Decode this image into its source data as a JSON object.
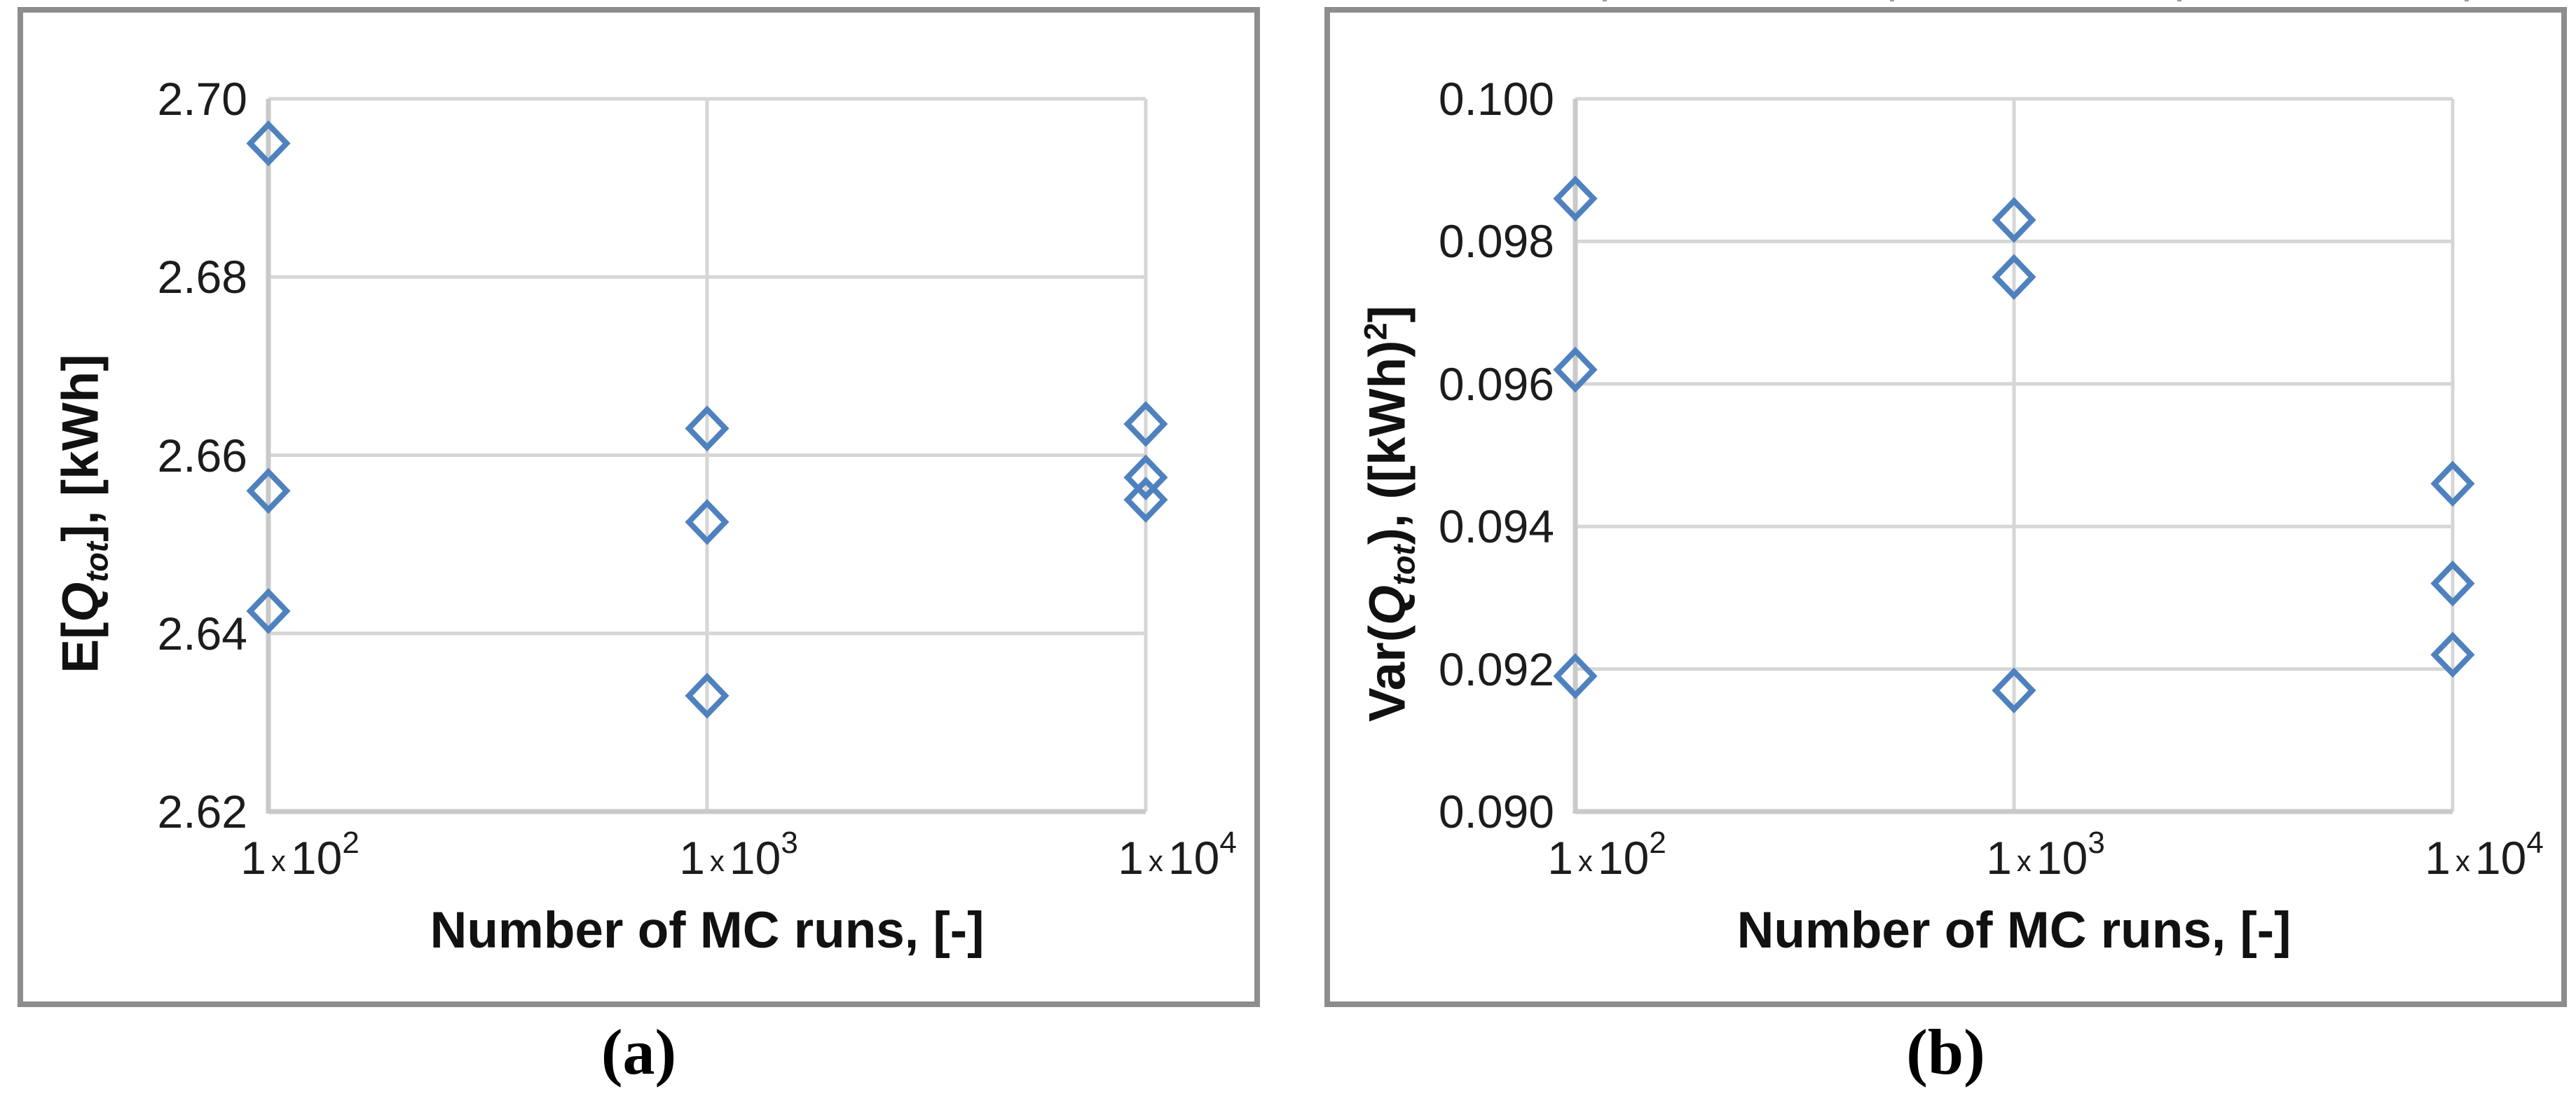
{
  "figure": {
    "background": "#ffffff",
    "border_color": "#8d8d8d",
    "gridline_color": "#d6d6d6",
    "axisline_color": "#c9c9c9",
    "marker_color": "#4e81bd",
    "panels": [
      {
        "caption": "(a)",
        "x_title": "Number of MC runs, [-]",
        "y_title": {
          "prefix": "E[",
          "var": "Q",
          "var_sub": "tot",
          "mid": "], [kWh]",
          "sup": "",
          "end": ""
        },
        "ytick_labels": [
          "2.70",
          "2.68",
          "2.66",
          "2.64",
          "2.62"
        ],
        "xtick_labels": [
          {
            "mant": "1",
            "times": "x",
            "base": "10",
            "exp": "2"
          },
          {
            "mant": "1",
            "times": "x",
            "base": "10",
            "exp": "3"
          },
          {
            "mant": "1",
            "times": "x",
            "base": "10",
            "exp": "4"
          }
        ],
        "top_ticks": []
      },
      {
        "caption": "(b)",
        "x_title": "Number of MC runs, [-]",
        "y_title": {
          "prefix": "Var(",
          "var": "Q",
          "var_sub": "tot",
          "mid": "), ([kWh)",
          "sup": "2",
          "end": "]"
        },
        "ytick_labels": [
          "0.100",
          "0.098",
          "0.096",
          "0.094",
          "0.092",
          "0.090"
        ],
        "xtick_labels": [
          {
            "mant": "1",
            "times": "x",
            "base": "10",
            "exp": "2"
          },
          {
            "mant": "1",
            "times": "x",
            "base": "10",
            "exp": "3"
          },
          {
            "mant": "1",
            "times": "x",
            "base": "10",
            "exp": "4"
          }
        ],
        "top_ticks": [
          392,
          802,
          1212,
          1622
        ]
      }
    ]
  },
  "chart_data": [
    {
      "type": "scatter",
      "title": "",
      "xlabel": "Number of MC runs, [-]",
      "ylabel": "E[Q_tot], [kWh]",
      "xscale": "log",
      "xlim": [
        100,
        10000
      ],
      "ylim": [
        2.62,
        2.7
      ],
      "xticks": [
        100,
        1000,
        10000
      ],
      "yticks": [
        2.62,
        2.64,
        2.66,
        2.68,
        2.7
      ],
      "grid": true,
      "legend_position": "none",
      "marker": "open-diamond",
      "points": [
        [
          100,
          2.695
        ],
        [
          100,
          2.656
        ],
        [
          100,
          2.6425
        ],
        [
          1000,
          2.663
        ],
        [
          1000,
          2.6525
        ],
        [
          1000,
          2.633
        ],
        [
          10000,
          2.6635
        ],
        [
          10000,
          2.6575
        ],
        [
          10000,
          2.655
        ]
      ]
    },
    {
      "type": "scatter",
      "title": "",
      "xlabel": "Number of MC runs, [-]",
      "ylabel": "Var(Q_tot), ([kWh)^2]",
      "xscale": "log",
      "xlim": [
        100,
        10000
      ],
      "ylim": [
        0.09,
        0.1
      ],
      "xticks": [
        100,
        1000,
        10000
      ],
      "yticks": [
        0.09,
        0.092,
        0.094,
        0.096,
        0.098,
        0.1
      ],
      "grid": true,
      "legend_position": "none",
      "marker": "open-diamond",
      "points": [
        [
          100,
          0.0986
        ],
        [
          100,
          0.0962
        ],
        [
          100,
          0.0919
        ],
        [
          1000,
          0.0983
        ],
        [
          1000,
          0.0975
        ],
        [
          1000,
          0.0917
        ],
        [
          10000,
          0.0946
        ],
        [
          10000,
          0.0932
        ],
        [
          10000,
          0.0922
        ]
      ]
    }
  ]
}
